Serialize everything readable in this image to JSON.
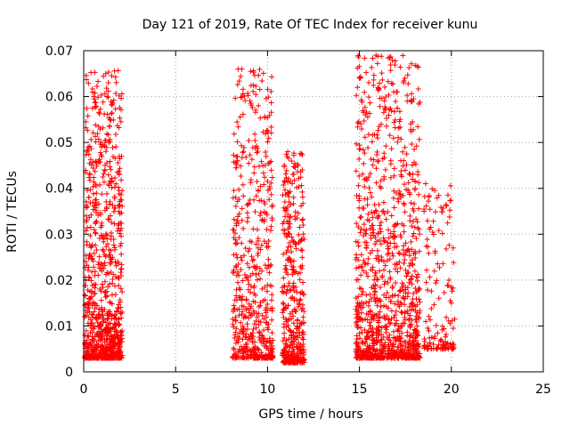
{
  "chart_data": {
    "type": "scatter",
    "title": "Day 121 of 2019, Rate Of TEC Index for receiver kunu",
    "xlabel": "GPS time / hours",
    "ylabel": "ROTI / TECUs",
    "xlim": [
      0,
      25
    ],
    "ylim": [
      0,
      0.07
    ],
    "grid": true,
    "x_ticks": [
      "0",
      "5",
      "10",
      "15",
      "20",
      "25"
    ],
    "y_ticks": [
      "0",
      "0.01",
      "0.02",
      "0.03",
      "0.04",
      "0.05",
      "0.06",
      "0.07"
    ],
    "marker": "plus",
    "marker_color": "#ff0000",
    "clusters": [
      {
        "x_range": [
          0.05,
          2.1
        ],
        "y_range": [
          0.003,
          0.066
        ],
        "n": 900
      },
      {
        "x_range": [
          8.1,
          10.3
        ],
        "y_range": [
          0.003,
          0.066
        ],
        "n": 550
      },
      {
        "x_range": [
          10.8,
          12.0
        ],
        "y_range": [
          0.002,
          0.048
        ],
        "n": 420
      },
      {
        "x_range": [
          14.8,
          18.3
        ],
        "y_range": [
          0.003,
          0.069
        ],
        "n": 1100
      },
      {
        "x_range": [
          18.5,
          20.2
        ],
        "y_range": [
          0.005,
          0.041
        ],
        "n": 140
      }
    ],
    "notable_points": [
      {
        "x": 0.55,
        "y": 0.06
      },
      {
        "x": 1.2,
        "y": 0.065
      },
      {
        "x": 8.4,
        "y": 0.066
      },
      {
        "x": 8.6,
        "y": 0.066
      },
      {
        "x": 15.0,
        "y": 0.064
      },
      {
        "x": 15.9,
        "y": 0.069
      },
      {
        "x": 11.1,
        "y": 0.048
      },
      {
        "x": 18.6,
        "y": 0.041
      },
      {
        "x": 20.1,
        "y": 0.027
      },
      {
        "x": 20.0,
        "y": 0.015
      }
    ]
  }
}
